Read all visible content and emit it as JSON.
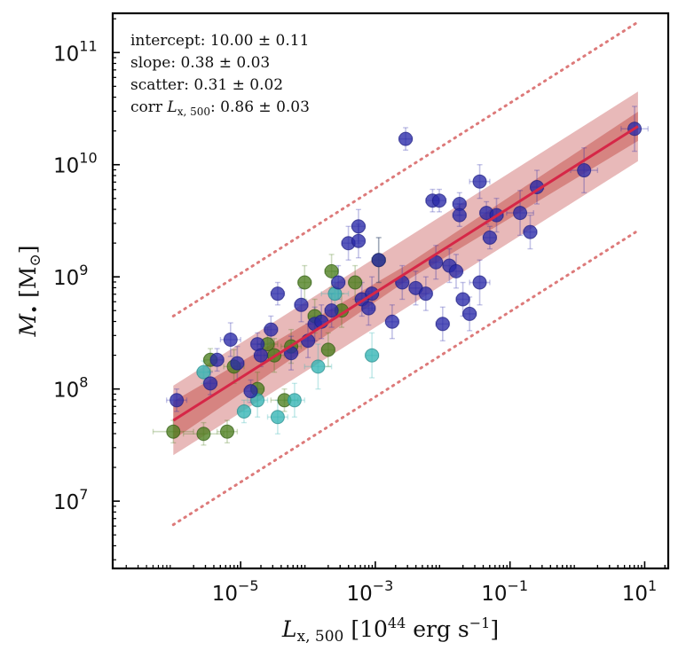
{
  "chart_data": {
    "type": "scatter",
    "xscale": "log",
    "yscale": "log",
    "xlim_log10": [
      -6.9,
      1.35
    ],
    "ylim_log10": [
      6.4,
      11.35
    ],
    "x_ticks": [
      {
        "log": -5,
        "base": "10",
        "exp": "−5"
      },
      {
        "log": -3,
        "base": "10",
        "exp": "−3"
      },
      {
        "log": -1,
        "base": "10",
        "exp": "−1"
      },
      {
        "log": 1,
        "base": "10",
        "exp": "1"
      }
    ],
    "y_ticks": [
      {
        "log": 7,
        "base": "10",
        "exp": "7"
      },
      {
        "log": 8,
        "base": "10",
        "exp": "8"
      },
      {
        "log": 9,
        "base": "10",
        "exp": "9"
      },
      {
        "log": 10,
        "base": "10",
        "exp": "10"
      },
      {
        "log": 11,
        "base": "10",
        "exp": "11"
      }
    ],
    "xlabel": {
      "main": "L",
      "sub": "x, 500",
      "unit_pre": "[10",
      "unit_exp": "44",
      "unit_mid": " erg s",
      "unit_exp2": "−1",
      "unit_post": "]"
    },
    "ylabel": {
      "main": "M",
      "sub": "•",
      "unit_pre": "[M",
      "unit_sub": "⊙",
      "unit_post": "]"
    },
    "annotations": [
      {
        "label": "intercept",
        "value": ": 10.00 ± 0.11"
      },
      {
        "label": "slope",
        "value": ": 0.38 ± 0.03"
      },
      {
        "label": "scatter",
        "value": ": 0.31 ± 0.02"
      },
      {
        "label": "corr",
        "sym": "L",
        "sub": "x, 500",
        "value": ": 0.86 ± 0.03"
      }
    ],
    "fit": {
      "pivot_log_x": 0,
      "intercept": 10.0,
      "slope": 0.38,
      "scatter": 0.31,
      "x_range_log": [
        -6.0,
        0.9
      ],
      "inner_band_halfwidth": [
        0.17,
        0.07,
        0.13
      ],
      "dotted_offset": 0.93,
      "colors": {
        "line": "#d62747",
        "band": "#d98a8a",
        "inner": "#c2453f",
        "dotted": "#dd7a7a"
      }
    },
    "series": [
      {
        "name": "blue",
        "color": "#2929a8",
        "edge": "#1e1e80",
        "points": [
          [
            -5.95,
            7.9,
            0.15,
            0.1
          ],
          [
            -5.45,
            8.05,
            0.1,
            0.1
          ],
          [
            -5.35,
            8.26,
            0.1,
            0.1
          ],
          [
            -5.15,
            8.44,
            0.15,
            0.15
          ],
          [
            -5.05,
            8.23,
            0.1,
            0.15
          ],
          [
            -4.85,
            7.98,
            0.1,
            0.1
          ],
          [
            -4.75,
            8.4,
            0.1,
            0.1
          ],
          [
            -4.7,
            8.3,
            0.1,
            0.1
          ],
          [
            -4.55,
            8.53,
            0.1,
            0.12
          ],
          [
            -4.45,
            8.85,
            0.1,
            0.1
          ],
          [
            -4.25,
            8.32,
            0.1,
            0.15
          ],
          [
            -4.1,
            8.75,
            0.1,
            0.15
          ],
          [
            -4.0,
            8.43,
            0.1,
            0.15
          ],
          [
            -3.9,
            8.58,
            0.1,
            0.15
          ],
          [
            -3.8,
            8.6,
            0.1,
            0.15
          ],
          [
            -3.65,
            8.7,
            0.1,
            0.15
          ],
          [
            -3.55,
            8.95,
            0.1,
            0.15
          ],
          [
            -3.4,
            9.3,
            0.1,
            0.15
          ],
          [
            -3.25,
            9.45,
            0.1,
            0.15
          ],
          [
            -3.25,
            9.32,
            0.1,
            0.15
          ],
          [
            -3.2,
            8.8,
            0.1,
            0.15
          ],
          [
            -3.1,
            8.72,
            0.1,
            0.15
          ],
          [
            -3.05,
            8.85,
            0.1,
            0.15
          ],
          [
            -2.95,
            9.15,
            0.1,
            0.2
          ],
          [
            -2.75,
            8.6,
            0.1,
            0.15
          ],
          [
            -2.6,
            8.95,
            0.1,
            0.15
          ],
          [
            -2.55,
            10.23,
            0.1,
            0.1
          ],
          [
            -2.4,
            8.9,
            0.1,
            0.15
          ],
          [
            -2.25,
            8.85,
            0.1,
            0.15
          ],
          [
            -2.15,
            9.68,
            0.1,
            0.1
          ],
          [
            -2.1,
            9.13,
            0.1,
            0.15
          ],
          [
            -2.05,
            9.68,
            0.1,
            0.1
          ],
          [
            -2.0,
            8.58,
            0.1,
            0.15
          ],
          [
            -1.9,
            9.1,
            0.1,
            0.15
          ],
          [
            -1.8,
            9.05,
            0.1,
            0.15
          ],
          [
            -1.75,
            9.65,
            0.1,
            0.1
          ],
          [
            -1.75,
            9.55,
            0.1,
            0.1
          ],
          [
            -1.7,
            8.8,
            0.1,
            0.15
          ],
          [
            -1.6,
            8.67,
            0.1,
            0.15
          ],
          [
            -1.45,
            9.85,
            0.15,
            0.15
          ],
          [
            -1.45,
            8.95,
            0.15,
            0.2
          ],
          [
            -1.35,
            9.57,
            0.1,
            0.1
          ],
          [
            -1.3,
            9.35,
            0.1,
            0.1
          ],
          [
            -1.2,
            9.55,
            0.1,
            0.15
          ],
          [
            -0.85,
            9.57,
            0.2,
            0.2
          ],
          [
            -0.7,
            9.4,
            0.1,
            0.15
          ],
          [
            -0.6,
            9.8,
            0.1,
            0.15
          ],
          [
            0.1,
            9.95,
            0.2,
            0.2
          ],
          [
            0.85,
            10.32,
            0.2,
            0.2
          ]
        ]
      },
      {
        "name": "green",
        "color": "#4c7d1e",
        "edge": "#2e5a10",
        "points": [
          [
            -6.0,
            7.62,
            0.3,
            0.1
          ],
          [
            -5.55,
            7.6,
            0.3,
            0.1
          ],
          [
            -5.45,
            8.26,
            0.1,
            0.1
          ],
          [
            -5.2,
            7.62,
            0.15,
            0.1
          ],
          [
            -5.1,
            8.2,
            0.15,
            0.15
          ],
          [
            -4.75,
            8.0,
            0.1,
            0.15
          ],
          [
            -4.6,
            8.4,
            0.15,
            0.15
          ],
          [
            -4.5,
            8.3,
            0.15,
            0.15
          ],
          [
            -4.35,
            7.9,
            0.2,
            0.1
          ],
          [
            -4.25,
            8.38,
            0.15,
            0.15
          ],
          [
            -4.05,
            8.95,
            0.1,
            0.15
          ],
          [
            -3.9,
            8.65,
            0.1,
            0.15
          ],
          [
            -3.7,
            8.35,
            0.1,
            0.15
          ],
          [
            -3.65,
            9.05,
            0.1,
            0.15
          ],
          [
            -3.5,
            8.7,
            0.1,
            0.15
          ],
          [
            -3.3,
            8.95,
            0.1,
            0.15
          ],
          [
            -2.95,
            9.15,
            0.1,
            0.2
          ]
        ]
      },
      {
        "name": "cyan",
        "color": "#32b4b4",
        "edge": "#2a8a8a",
        "points": [
          [
            -5.55,
            8.15,
            0.1,
            0.1
          ],
          [
            -4.95,
            7.8,
            0.1,
            0.1
          ],
          [
            -4.75,
            7.9,
            0.15,
            0.15
          ],
          [
            -4.45,
            7.75,
            0.15,
            0.15
          ],
          [
            -4.2,
            7.9,
            0.15,
            0.15
          ],
          [
            -3.85,
            8.2,
            0.2,
            0.2
          ],
          [
            -3.6,
            8.85,
            0.2,
            0.2
          ],
          [
            -3.05,
            8.3,
            0.1,
            0.2
          ]
        ]
      }
    ]
  }
}
